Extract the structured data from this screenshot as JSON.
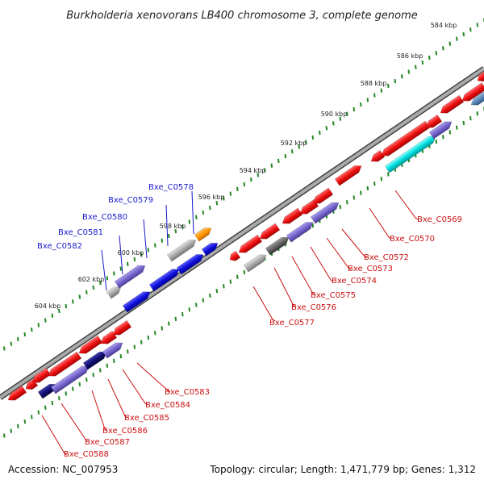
{
  "title": "Burkholderia xenovorans LB400 chromosome 3, complete genome",
  "footer": {
    "accession": "Accession: NC_007953",
    "summary": "Topology: circular; Length: 1,471,779 bp; Genes: 1,312"
  },
  "ticks": [
    "584 kbp",
    "586 kbp",
    "588 kbp",
    "590 kbp",
    "592 kbp",
    "594 kbp",
    "596 kbp",
    "598 kbp",
    "600 kbp",
    "602 kbp",
    "604 kbp"
  ],
  "labels_forward": [
    "Bxe_C0578",
    "Bxe_C0579",
    "Bxe_C0580",
    "Bxe_C0581",
    "Bxe_C0582"
  ],
  "labels_reverse": [
    "Bxe_C0569",
    "Bxe_C0570",
    "Bxe_C0572",
    "Bxe_C0573",
    "Bxe_C0574",
    "Bxe_C0575",
    "Bxe_C0576",
    "Bxe_C0577",
    "Bxe_C0583",
    "Bxe_C0584",
    "Bxe_C0585",
    "Bxe_C0586",
    "Bxe_C0587",
    "Bxe_C0588"
  ],
  "colors": {
    "forward_label": "#1a1acc",
    "reverse_label": "#cc1111",
    "backbone": "#888888",
    "tick_dots": "#228822",
    "red": "#ee1111",
    "blue": "#1111dd",
    "lavender": "#7766cc",
    "navy": "#111177",
    "gray": "#aaaaaa",
    "darkgray": "#666666",
    "orange": "#ff9900",
    "cyan": "#00dddd"
  }
}
